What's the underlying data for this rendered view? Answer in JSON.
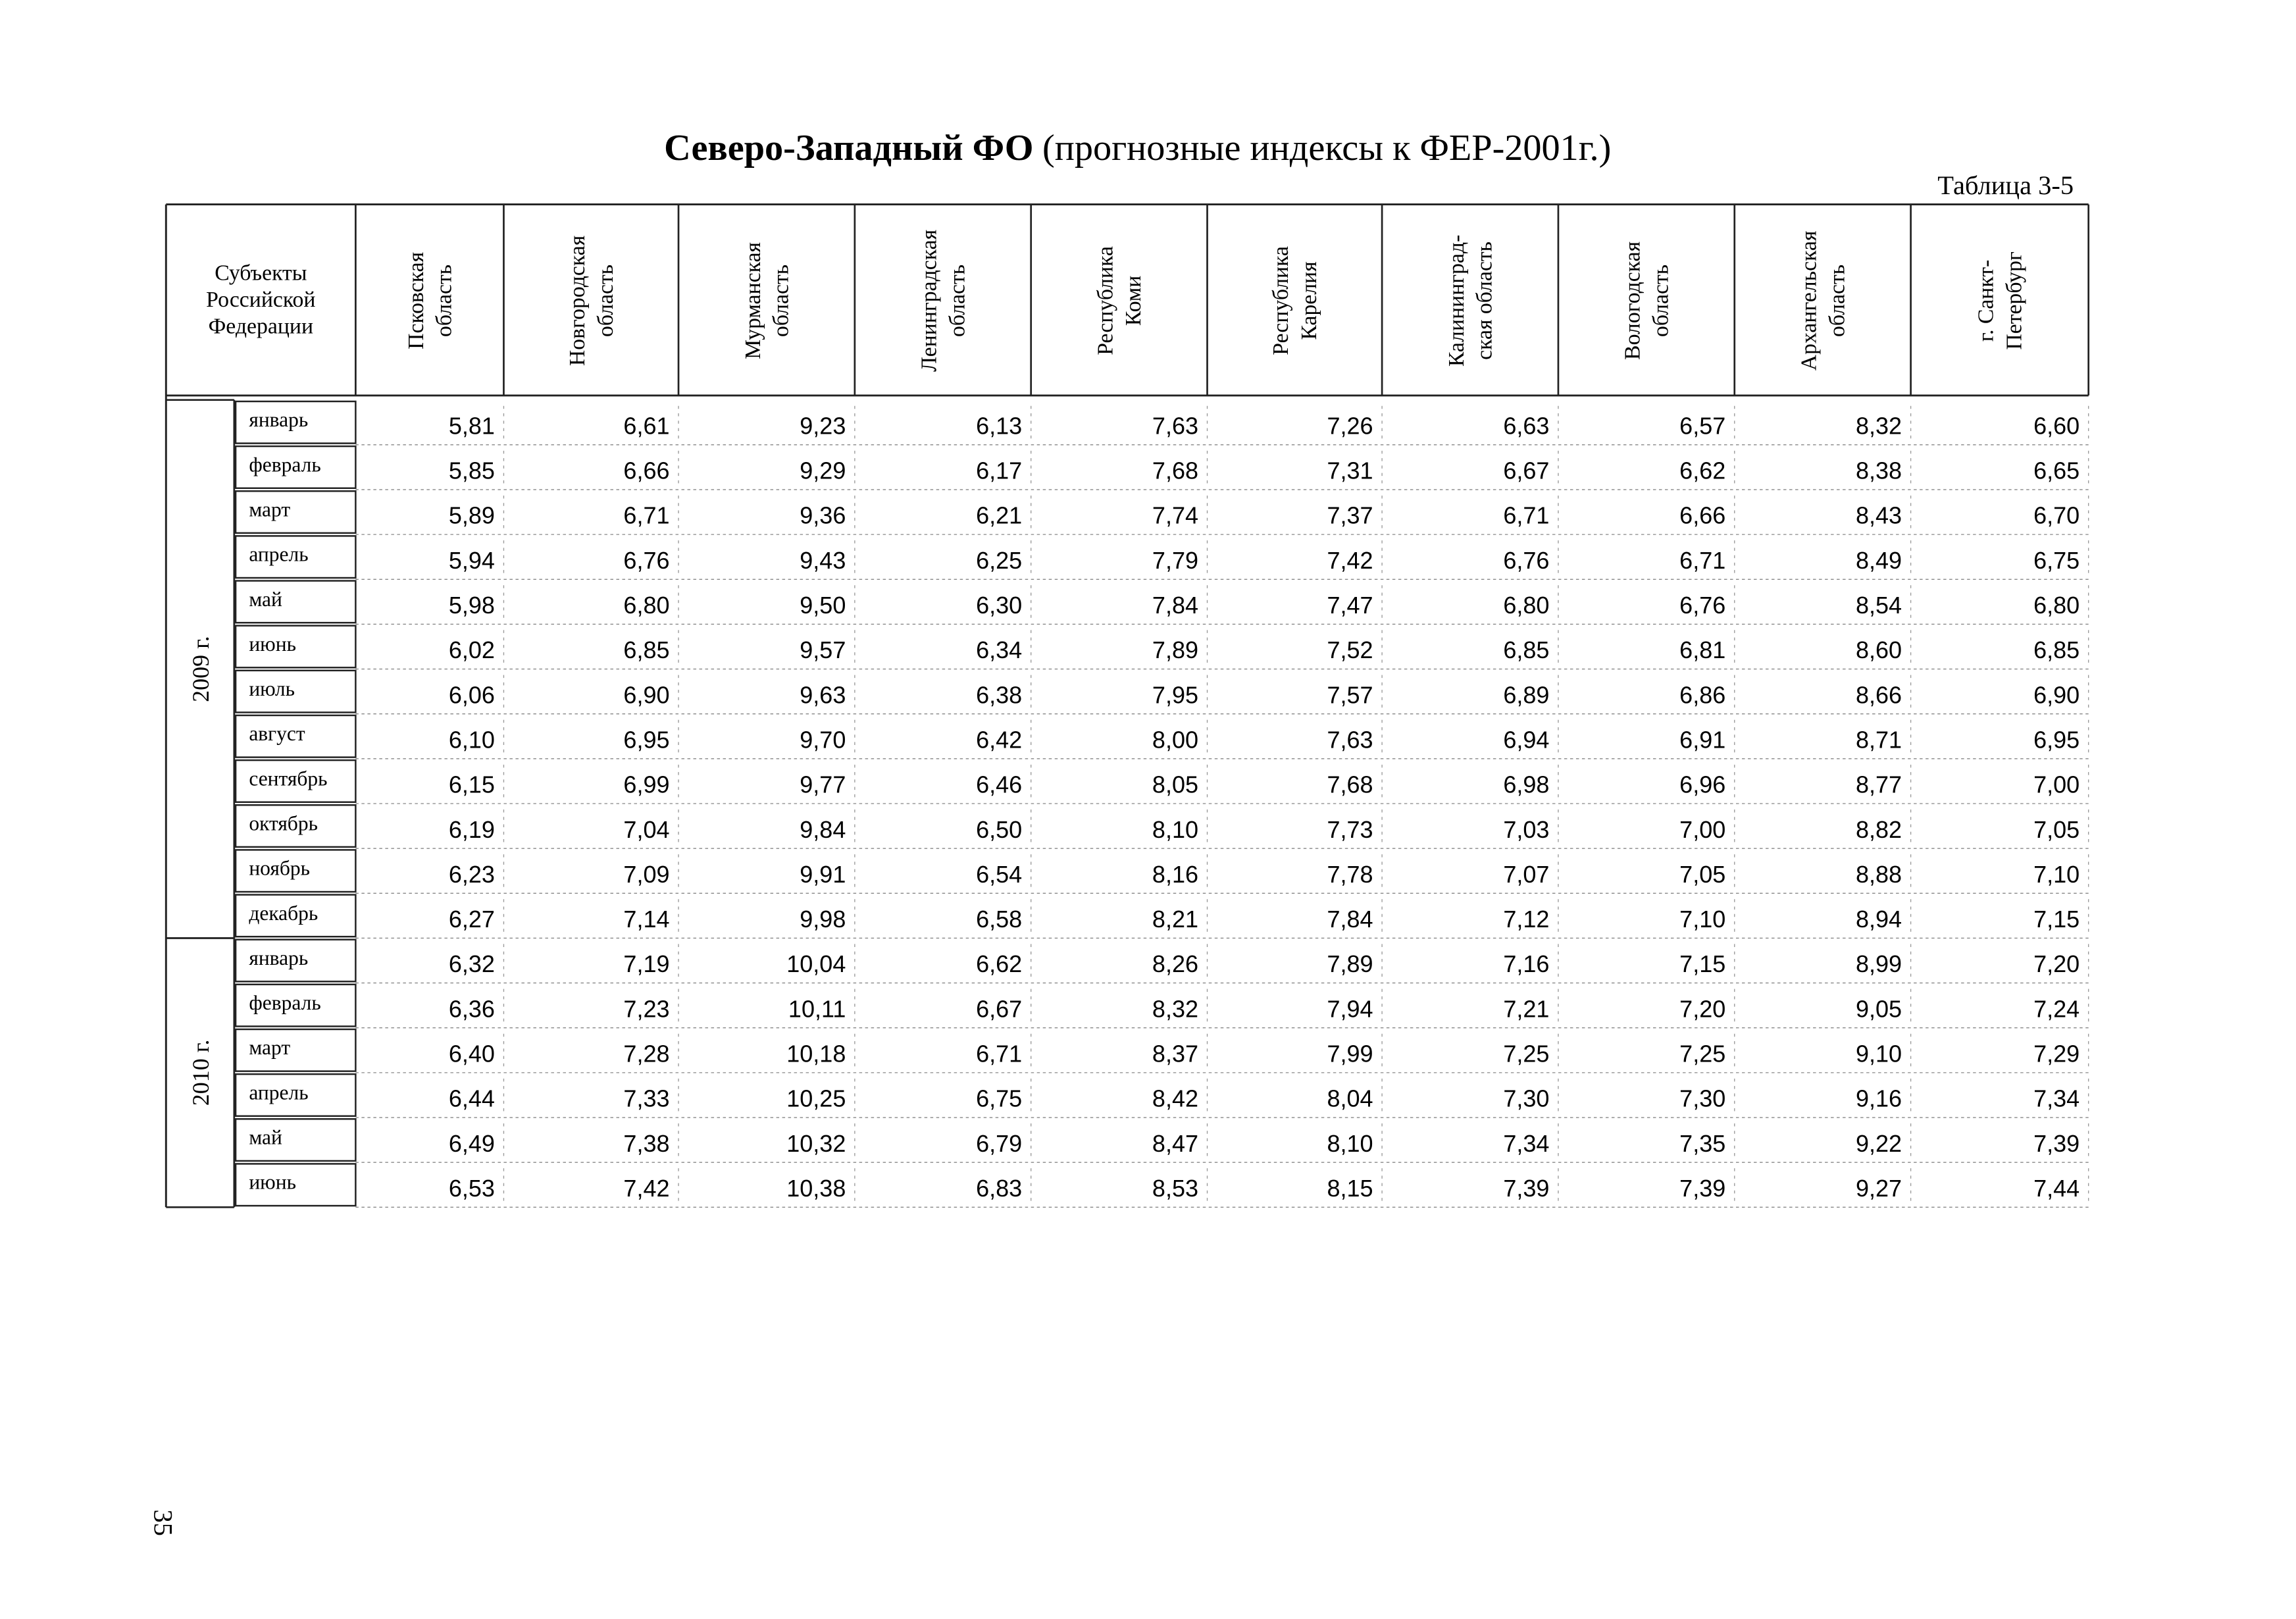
{
  "title": {
    "bold": "Северо-Западный ФО",
    "rest": "(прогнозные индексы к ФЕР-2001г.)"
  },
  "table_label": "Таблица 3-5",
  "table": {
    "corner": [
      "Субъекты",
      "Российской",
      "Федерации"
    ],
    "columns": [
      [
        "Псковская",
        "область"
      ],
      [
        "Новгородская",
        "область"
      ],
      [
        "Мурманская",
        "область"
      ],
      [
        "Ленинградская",
        "область"
      ],
      [
        "Республика",
        "Коми"
      ],
      [
        "Республика",
        "Карелия"
      ],
      [
        "Калининград-",
        "ская область"
      ],
      [
        "Вологодская",
        "область"
      ],
      [
        "Архангельская",
        "область"
      ],
      [
        "г. Санкт-",
        "Петербург"
      ]
    ],
    "groups": [
      {
        "year": "2009 г.",
        "rows": [
          {
            "month": "январь",
            "values": [
              "5,81",
              "6,61",
              "9,23",
              "6,13",
              "7,63",
              "7,26",
              "6,63",
              "6,57",
              "8,32",
              "6,60"
            ]
          },
          {
            "month": "февраль",
            "values": [
              "5,85",
              "6,66",
              "9,29",
              "6,17",
              "7,68",
              "7,31",
              "6,67",
              "6,62",
              "8,38",
              "6,65"
            ]
          },
          {
            "month": "март",
            "values": [
              "5,89",
              "6,71",
              "9,36",
              "6,21",
              "7,74",
              "7,37",
              "6,71",
              "6,66",
              "8,43",
              "6,70"
            ]
          },
          {
            "month": "апрель",
            "values": [
              "5,94",
              "6,76",
              "9,43",
              "6,25",
              "7,79",
              "7,42",
              "6,76",
              "6,71",
              "8,49",
              "6,75"
            ]
          },
          {
            "month": "май",
            "values": [
              "5,98",
              "6,80",
              "9,50",
              "6,30",
              "7,84",
              "7,47",
              "6,80",
              "6,76",
              "8,54",
              "6,80"
            ]
          },
          {
            "month": "июнь",
            "values": [
              "6,02",
              "6,85",
              "9,57",
              "6,34",
              "7,89",
              "7,52",
              "6,85",
              "6,81",
              "8,60",
              "6,85"
            ]
          },
          {
            "month": "июль",
            "values": [
              "6,06",
              "6,90",
              "9,63",
              "6,38",
              "7,95",
              "7,57",
              "6,89",
              "6,86",
              "8,66",
              "6,90"
            ]
          },
          {
            "month": "август",
            "values": [
              "6,10",
              "6,95",
              "9,70",
              "6,42",
              "8,00",
              "7,63",
              "6,94",
              "6,91",
              "8,71",
              "6,95"
            ]
          },
          {
            "month": "сентябрь",
            "values": [
              "6,15",
              "6,99",
              "9,77",
              "6,46",
              "8,05",
              "7,68",
              "6,98",
              "6,96",
              "8,77",
              "7,00"
            ]
          },
          {
            "month": "октябрь",
            "values": [
              "6,19",
              "7,04",
              "9,84",
              "6,50",
              "8,10",
              "7,73",
              "7,03",
              "7,00",
              "8,82",
              "7,05"
            ]
          },
          {
            "month": "ноябрь",
            "values": [
              "6,23",
              "7,09",
              "9,91",
              "6,54",
              "8,16",
              "7,78",
              "7,07",
              "7,05",
              "8,88",
              "7,10"
            ]
          },
          {
            "month": "декабрь",
            "values": [
              "6,27",
              "7,14",
              "9,98",
              "6,58",
              "8,21",
              "7,84",
              "7,12",
              "7,10",
              "8,94",
              "7,15"
            ]
          }
        ]
      },
      {
        "year": "2010 г.",
        "rows": [
          {
            "month": "январь",
            "values": [
              "6,32",
              "7,19",
              "10,04",
              "6,62",
              "8,26",
              "7,89",
              "7,16",
              "7,15",
              "8,99",
              "7,20"
            ]
          },
          {
            "month": "февраль",
            "values": [
              "6,36",
              "7,23",
              "10,11",
              "6,67",
              "8,32",
              "7,94",
              "7,21",
              "7,20",
              "9,05",
              "7,24"
            ]
          },
          {
            "month": "март",
            "values": [
              "6,40",
              "7,28",
              "10,18",
              "6,71",
              "8,37",
              "7,99",
              "7,25",
              "7,25",
              "9,10",
              "7,29"
            ]
          },
          {
            "month": "апрель",
            "values": [
              "6,44",
              "7,33",
              "10,25",
              "6,75",
              "8,42",
              "8,04",
              "7,30",
              "7,30",
              "9,16",
              "7,34"
            ]
          },
          {
            "month": "май",
            "values": [
              "6,49",
              "7,38",
              "10,32",
              "6,79",
              "8,47",
              "8,10",
              "7,34",
              "7,35",
              "9,22",
              "7,39"
            ]
          },
          {
            "month": "июнь",
            "values": [
              "6,53",
              "7,42",
              "10,38",
              "6,83",
              "8,53",
              "8,15",
              "7,39",
              "7,39",
              "9,27",
              "7,44"
            ]
          }
        ]
      }
    ]
  },
  "page_number": "35"
}
